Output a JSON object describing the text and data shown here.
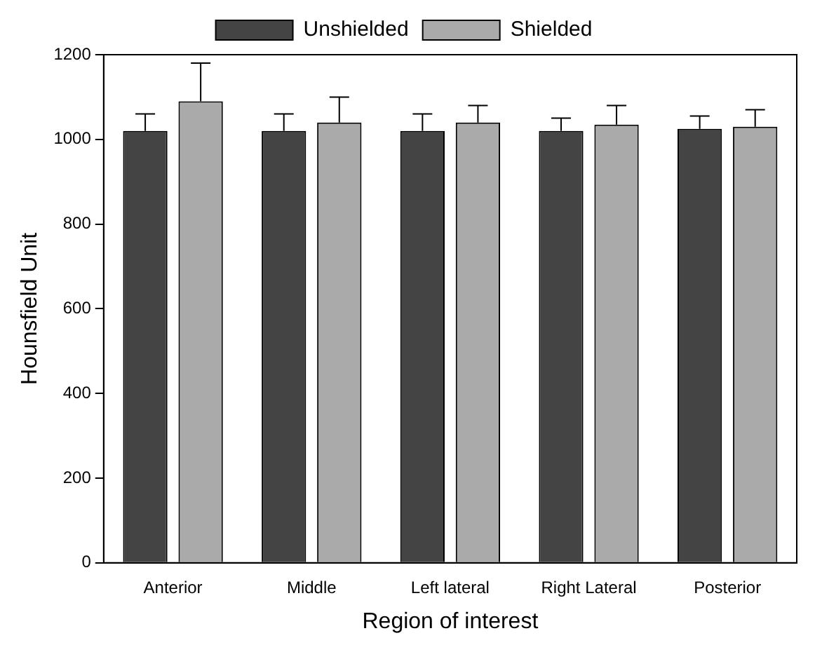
{
  "chart_data": {
    "type": "bar",
    "xlabel": "Region of interest",
    "ylabel": "Hounsfield Unit",
    "categories": [
      "Anterior",
      "Middle",
      "Left lateral",
      "Right Lateral",
      "Posterior"
    ],
    "series": [
      {
        "name": "Unshielded",
        "color": "#444444",
        "values": [
          1020,
          1020,
          1020,
          1020,
          1025
        ],
        "errors": [
          [
            1020,
            1060
          ],
          [
            1020,
            1060
          ],
          [
            1020,
            1060
          ],
          [
            1020,
            1050
          ],
          [
            1025,
            1055
          ]
        ]
      },
      {
        "name": "Shielded",
        "color": "#aaaaaa",
        "values": [
          1090,
          1040,
          1040,
          1035,
          1030
        ],
        "errors": [
          [
            1090,
            1180
          ],
          [
            1040,
            1100
          ],
          [
            1040,
            1080
          ],
          [
            1035,
            1080
          ],
          [
            1030,
            1070
          ]
        ]
      }
    ],
    "ylim": [
      0,
      1200
    ],
    "yticks": [
      0,
      200,
      400,
      600,
      800,
      1000,
      1200
    ],
    "grid": false,
    "legend": "top"
  }
}
